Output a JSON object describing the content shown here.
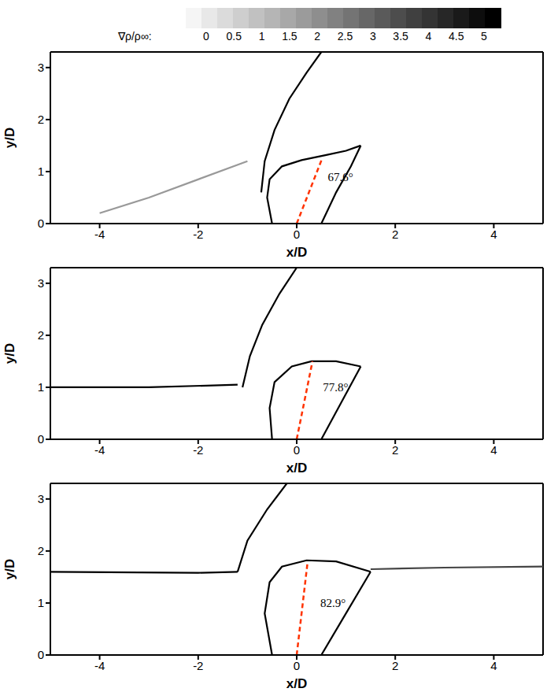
{
  "colorbar": {
    "label": "∇ρ/ρ∞:",
    "range": [
      0,
      5
    ],
    "ticks": [
      0,
      0.5,
      1,
      1.5,
      2,
      2.5,
      3,
      3.5,
      4,
      4.5,
      5
    ]
  },
  "chart_data": [
    {
      "type": "line",
      "xlabel": "x/D",
      "ylabel": "y/D",
      "xlim": [
        -5,
        5
      ],
      "ylim": [
        0,
        3.3
      ],
      "xticks": [
        -4,
        -2,
        0,
        2,
        4
      ],
      "yticks": [
        0,
        1,
        2,
        3
      ],
      "series": [
        {
          "color": "#000000",
          "line_style": "solid",
          "x": [
            -0.72,
            -0.65,
            -0.45,
            -0.15,
            0.2,
            0.5
          ],
          "values": [
            0.6,
            1.2,
            1.8,
            2.4,
            2.9,
            3.3
          ]
        },
        {
          "color": "#000000",
          "line_style": "solid",
          "x": [
            -0.5,
            -0.6,
            -0.55,
            -0.3,
            0.1,
            0.6,
            1.0,
            1.3
          ],
          "values": [
            0,
            0.5,
            0.85,
            1.1,
            1.22,
            1.32,
            1.4,
            1.5
          ]
        },
        {
          "color": "#000000",
          "line_style": "solid",
          "x": [
            0.5,
            0.8,
            1.1,
            1.3
          ],
          "values": [
            0,
            0.6,
            1.1,
            1.5
          ]
        },
        {
          "color": "#999999",
          "line_style": "solid",
          "x": [
            -4,
            -3,
            -2,
            -1
          ],
          "values": [
            0.2,
            0.5,
            0.85,
            1.2
          ]
        },
        {
          "color": "#ff3300",
          "line_style": "dashed",
          "x": [
            0,
            0.52
          ],
          "values": [
            0,
            1.26
          ]
        }
      ],
      "annotations": [
        {
          "text": "67.6°",
          "x": 0.55,
          "y": 0.9
        }
      ]
    },
    {
      "type": "line",
      "xlabel": "x/D",
      "ylabel": "y/D",
      "xlim": [
        -5,
        5
      ],
      "ylim": [
        0,
        3.3
      ],
      "xticks": [
        -4,
        -2,
        0,
        2,
        4
      ],
      "yticks": [
        0,
        1,
        2,
        3
      ],
      "series": [
        {
          "color": "#000000",
          "line_style": "solid",
          "x": [
            -1.1,
            -0.95,
            -0.7,
            -0.35,
            0
          ],
          "values": [
            1.0,
            1.6,
            2.2,
            2.8,
            3.3
          ]
        },
        {
          "color": "#000000",
          "line_style": "solid",
          "x": [
            -0.5,
            -0.55,
            -0.45,
            -0.1,
            0.3,
            0.8,
            1.3
          ],
          "values": [
            0,
            0.6,
            1.1,
            1.4,
            1.5,
            1.5,
            1.4
          ]
        },
        {
          "color": "#000000",
          "line_style": "solid",
          "x": [
            0.5,
            0.9,
            1.3
          ],
          "values": [
            0,
            0.7,
            1.4
          ]
        },
        {
          "color": "#000000",
          "line_style": "solid",
          "x": [
            -5,
            -3,
            -1.2
          ],
          "values": [
            1.0,
            1.0,
            1.05
          ]
        },
        {
          "color": "#ff3300",
          "line_style": "dashed",
          "x": [
            0,
            0.32
          ],
          "values": [
            0,
            1.5
          ]
        }
      ],
      "annotations": [
        {
          "text": "77.8°",
          "x": 0.45,
          "y": 1.0
        }
      ]
    },
    {
      "type": "line",
      "xlabel": "x/D",
      "ylabel": "y/D",
      "xlim": [
        -5,
        5
      ],
      "ylim": [
        0,
        3.3
      ],
      "xticks": [
        -4,
        -2,
        0,
        2,
        4
      ],
      "yticks": [
        0,
        1,
        2,
        3
      ],
      "series": [
        {
          "color": "#000000",
          "line_style": "solid",
          "x": [
            -1.2,
            -1.0,
            -0.6,
            -0.2
          ],
          "values": [
            1.6,
            2.2,
            2.8,
            3.3
          ]
        },
        {
          "color": "#000000",
          "line_style": "solid",
          "x": [
            -0.5,
            -0.65,
            -0.55,
            -0.3,
            0.2,
            0.8,
            1.5
          ],
          "values": [
            0,
            0.8,
            1.4,
            1.7,
            1.82,
            1.8,
            1.6
          ]
        },
        {
          "color": "#000000",
          "line_style": "solid",
          "x": [
            0.5,
            1.0,
            1.5
          ],
          "values": [
            0,
            0.8,
            1.6
          ]
        },
        {
          "color": "#000000",
          "line_style": "solid",
          "x": [
            -5,
            -2,
            -1.2
          ],
          "values": [
            1.6,
            1.58,
            1.6
          ]
        },
        {
          "color": "#444444",
          "line_style": "solid",
          "x": [
            1.5,
            3,
            5
          ],
          "values": [
            1.65,
            1.68,
            1.7
          ]
        },
        {
          "color": "#ff3300",
          "line_style": "dashed",
          "x": [
            0,
            0.22
          ],
          "values": [
            0,
            1.78
          ]
        }
      ],
      "annotations": [
        {
          "text": "82.9°",
          "x": 0.4,
          "y": 1.0
        }
      ]
    }
  ]
}
